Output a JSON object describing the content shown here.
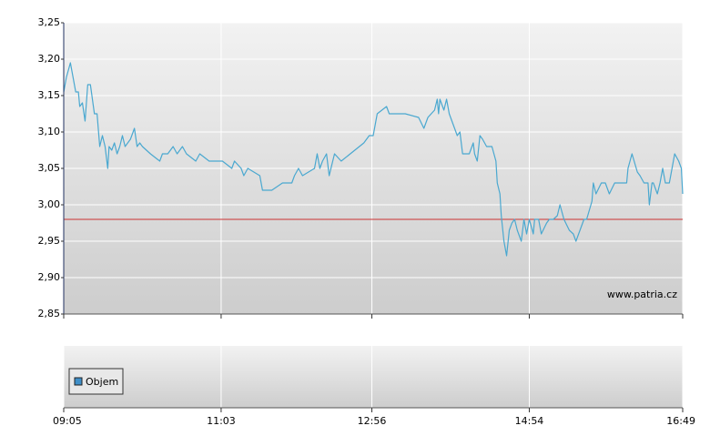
{
  "chart_data": {
    "type": "line",
    "watermark": "www.patria.cz",
    "xlim": [
      "09:05",
      "16:49"
    ],
    "xticks": [
      "09:05",
      "11:03",
      "12:56",
      "14:54",
      "16:49"
    ],
    "ylim": [
      2.85,
      3.25
    ],
    "yticks": [
      {
        "value": 2.85,
        "label": "2,85"
      },
      {
        "value": 2.9,
        "label": "2,90"
      },
      {
        "value": 2.95,
        "label": "2,95"
      },
      {
        "value": 3.0,
        "label": "3,00"
      },
      {
        "value": 3.05,
        "label": "3,05"
      },
      {
        "value": 3.1,
        "label": "3,10"
      },
      {
        "value": 3.15,
        "label": "3,15"
      },
      {
        "value": 3.2,
        "label": "3,20"
      },
      {
        "value": 3.25,
        "label": "3,25"
      }
    ],
    "grid": true,
    "reference_line": {
      "value": 2.98,
      "color": "#cc3333"
    },
    "volume": {
      "name": "Objem",
      "color": "#3f8fc8"
    },
    "series": [
      {
        "color": "#4aa8d0",
        "x": [
          "09:05",
          "09:07",
          "09:10",
          "09:12",
          "09:14",
          "09:16",
          "09:17",
          "09:19",
          "09:21",
          "09:23",
          "09:25",
          "09:28",
          "09:30",
          "09:32",
          "09:34",
          "09:36",
          "09:38",
          "09:39",
          "09:41",
          "09:43",
          "09:45",
          "09:47",
          "09:49",
          "09:51",
          "09:53",
          "09:55",
          "09:58",
          "10:00",
          "10:02",
          "10:04",
          "10:10",
          "10:17",
          "10:19",
          "10:23",
          "10:27",
          "10:30",
          "10:34",
          "10:37",
          "10:44",
          "10:47",
          "10:54",
          "11:04",
          "11:11",
          "11:13",
          "11:18",
          "11:20",
          "11:23",
          "11:32",
          "11:34",
          "11:41",
          "11:49",
          "11:56",
          "11:58",
          "12:01",
          "12:04",
          "12:13",
          "12:15",
          "12:17",
          "12:19",
          "12:22",
          "12:24",
          "12:28",
          "12:33",
          "12:50",
          "12:54",
          "12:57",
          "13:00",
          "13:07",
          "13:09",
          "13:21",
          "13:31",
          "13:35",
          "13:38",
          "13:43",
          "13:45",
          "13:46",
          "13:47",
          "13:50",
          "13:52",
          "13:54",
          "13:55",
          "13:58",
          "14:00",
          "14:02",
          "14:04",
          "14:09",
          "14:12",
          "14:13",
          "14:15",
          "14:17",
          "14:19",
          "14:22",
          "14:26",
          "14:29",
          "14:30",
          "14:32",
          "14:33",
          "14:35",
          "14:37",
          "14:39",
          "14:41",
          "14:43",
          "14:45",
          "14:48",
          "14:50",
          "14:52",
          "14:54",
          "14:57",
          "14:58",
          "15:01",
          "15:03",
          "15:07",
          "15:09",
          "15:12",
          "15:15",
          "15:17",
          "15:20",
          "15:24",
          "15:27",
          "15:29",
          "15:33",
          "15:35",
          "15:37",
          "15:41",
          "15:42",
          "15:44",
          "15:48",
          "15:51",
          "15:54",
          "15:58",
          "16:07",
          "16:08",
          "16:11",
          "16:15",
          "16:17",
          "16:20",
          "16:23",
          "16:24",
          "16:26",
          "16:27",
          "16:30",
          "16:32",
          "16:34",
          "16:36",
          "16:39",
          "16:41",
          "16:43",
          "16:46",
          "16:48",
          "16:49"
        ],
        "values": [
          3.155,
          3.175,
          3.195,
          3.175,
          3.155,
          3.155,
          3.135,
          3.14,
          3.115,
          3.165,
          3.165,
          3.125,
          3.125,
          3.08,
          3.095,
          3.08,
          3.05,
          3.08,
          3.075,
          3.085,
          3.07,
          3.08,
          3.095,
          3.08,
          3.085,
          3.09,
          3.105,
          3.08,
          3.085,
          3.08,
          3.07,
          3.06,
          3.07,
          3.07,
          3.08,
          3.07,
          3.08,
          3.07,
          3.06,
          3.07,
          3.06,
          3.06,
          3.05,
          3.06,
          3.05,
          3.04,
          3.05,
          3.04,
          3.02,
          3.02,
          3.03,
          3.03,
          3.04,
          3.05,
          3.04,
          3.05,
          3.07,
          3.05,
          3.06,
          3.07,
          3.04,
          3.07,
          3.06,
          3.085,
          3.095,
          3.095,
          3.125,
          3.135,
          3.125,
          3.125,
          3.12,
          3.105,
          3.12,
          3.13,
          3.145,
          3.125,
          3.145,
          3.13,
          3.145,
          3.125,
          3.12,
          3.105,
          3.095,
          3.1,
          3.07,
          3.07,
          3.085,
          3.07,
          3.06,
          3.095,
          3.09,
          3.08,
          3.08,
          3.06,
          3.03,
          3.015,
          2.985,
          2.95,
          2.93,
          2.965,
          2.975,
          2.98,
          2.965,
          2.95,
          2.98,
          2.96,
          2.98,
          2.96,
          2.98,
          2.98,
          2.96,
          2.975,
          2.98,
          2.98,
          2.985,
          3.0,
          2.98,
          2.965,
          2.96,
          2.95,
          2.97,
          2.98,
          2.98,
          3.005,
          3.03,
          3.015,
          3.03,
          3.03,
          3.015,
          3.03,
          3.03,
          3.05,
          3.07,
          3.045,
          3.04,
          3.03,
          3.03,
          3.0,
          3.03,
          3.03,
          3.015,
          3.03,
          3.05,
          3.03,
          3.03,
          3.05,
          3.07,
          3.06,
          3.05,
          3.015
        ]
      }
    ]
  }
}
